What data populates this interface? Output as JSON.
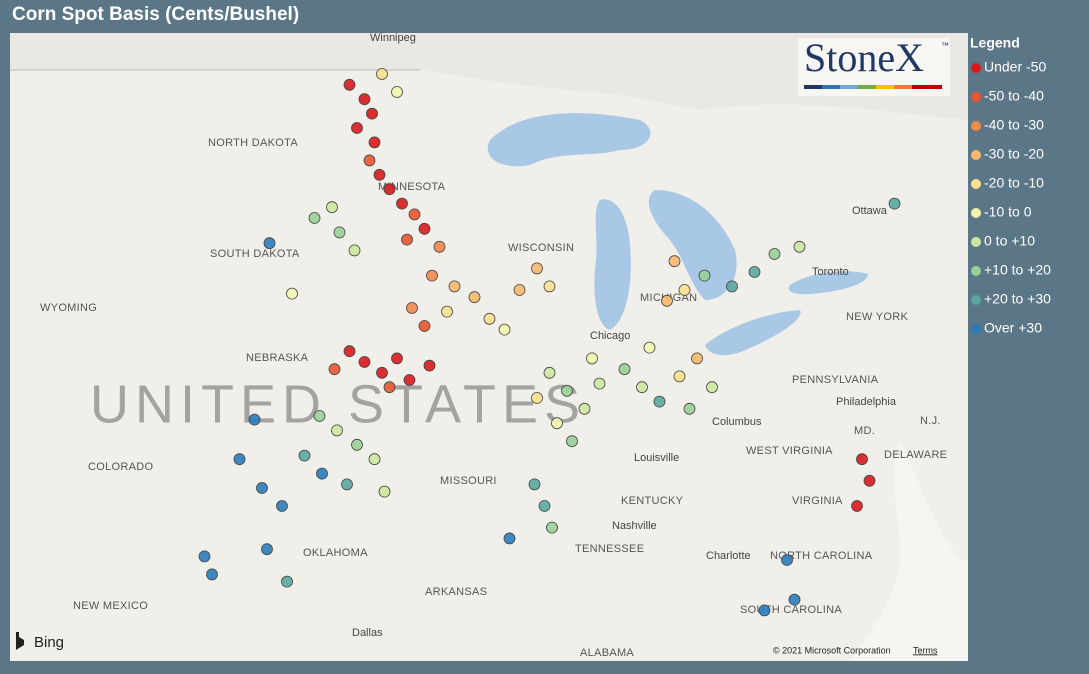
{
  "chart_data": {
    "type": "map",
    "title": "Corn Spot Basis (Cents/Bushel)",
    "legend_title": "Legend",
    "logo": "StoneX",
    "logo_mark": "™",
    "provider": "Bing",
    "copyright": "© 2021 Microsoft Corporation",
    "terms": "Terms",
    "classes": [
      {
        "name": "Under -50",
        "color": "#d7191c"
      },
      {
        "name": "-50 to -40",
        "color": "#e8552f"
      },
      {
        "name": "-40 to -30",
        "color": "#f08a4b"
      },
      {
        "name": "-30 to -20",
        "color": "#f6b86f"
      },
      {
        "name": "-20 to -10",
        "color": "#fbe08f"
      },
      {
        "name": "-10 to 0",
        "color": "#f4f6ad"
      },
      {
        "name": "0 to +10",
        "color": "#cce8a0"
      },
      {
        "name": "+10 to +20",
        "color": "#98d096"
      },
      {
        "name": "+20 to +30",
        "color": "#5aa6a0"
      },
      {
        "name": "Over +30",
        "color": "#2b7bba"
      }
    ],
    "map_labels": [
      "Winnipeg",
      "NORTH DAKOTA",
      "MINNESOTA",
      "SOUTH DAKOTA",
      "WYOMING",
      "NEBRASKA",
      "UNITED STATES",
      "COLORADO",
      "MISSOURI",
      "OKLAHOMA",
      "NEW MEXICO",
      "ARKANSAS",
      "Dallas",
      "ALABAMA",
      "TENNESSEE",
      "Nashville",
      "KENTUCKY",
      "Louisville",
      "WEST VIRGINIA",
      "VIRGINIA",
      "NORTH CAROLINA",
      "SOUTH CAROLINA",
      "Charlotte",
      "PENNSYLVANIA",
      "Philadelphia",
      "NEW YORK",
      "Ottawa",
      "Toronto",
      "Chicago",
      "MICHIGAN",
      "WISCONSIN",
      "Columbus",
      "MD.",
      "DELAWARE",
      "N.J."
    ],
    "points": [
      [
        -97.8,
        48.6,
        0
      ],
      [
        -97.2,
        48.2,
        0
      ],
      [
        -96.9,
        47.8,
        0
      ],
      [
        -97.5,
        47.4,
        0
      ],
      [
        -96.8,
        47.0,
        0
      ],
      [
        -97.0,
        46.5,
        1
      ],
      [
        -96.6,
        46.1,
        0
      ],
      [
        -96.2,
        45.7,
        0
      ],
      [
        -95.7,
        45.3,
        0
      ],
      [
        -95.2,
        45.0,
        1
      ],
      [
        -94.8,
        44.6,
        0
      ],
      [
        -95.5,
        44.3,
        1
      ],
      [
        -94.2,
        44.1,
        2
      ],
      [
        -96.5,
        48.9,
        4
      ],
      [
        -95.9,
        48.4,
        5
      ],
      [
        -98.5,
        45.2,
        6
      ],
      [
        -98.2,
        44.5,
        7
      ],
      [
        -97.6,
        44.0,
        6
      ],
      [
        -99.2,
        44.9,
        7
      ],
      [
        -101.0,
        44.2,
        9
      ],
      [
        -100.1,
        42.8,
        5
      ],
      [
        -94.5,
        43.3,
        2
      ],
      [
        -93.6,
        43.0,
        3
      ],
      [
        -92.8,
        42.7,
        3
      ],
      [
        -93.9,
        42.3,
        4
      ],
      [
        -92.2,
        42.1,
        4
      ],
      [
        -91.6,
        41.8,
        5
      ],
      [
        -94.8,
        41.9,
        1
      ],
      [
        -95.3,
        42.4,
        2
      ],
      [
        -91.0,
        42.9,
        3
      ],
      [
        -90.3,
        43.5,
        3
      ],
      [
        -89.8,
        43.0,
        4
      ],
      [
        -97.8,
        41.2,
        0
      ],
      [
        -97.2,
        40.9,
        0
      ],
      [
        -96.5,
        40.6,
        0
      ],
      [
        -95.9,
        41.0,
        0
      ],
      [
        -96.2,
        40.2,
        1
      ],
      [
        -95.4,
        40.4,
        0
      ],
      [
        -98.4,
        40.7,
        1
      ],
      [
        -94.6,
        40.8,
        0
      ],
      [
        -99.0,
        39.4,
        7
      ],
      [
        -98.3,
        39.0,
        6
      ],
      [
        -97.5,
        38.6,
        7
      ],
      [
        -96.8,
        38.2,
        6
      ],
      [
        -99.6,
        38.3,
        8
      ],
      [
        -98.9,
        37.8,
        9
      ],
      [
        -97.9,
        37.5,
        8
      ],
      [
        -96.4,
        37.3,
        6
      ],
      [
        -101.6,
        39.3,
        9
      ],
      [
        -102.2,
        38.2,
        9
      ],
      [
        -101.3,
        37.4,
        9
      ],
      [
        -100.5,
        36.9,
        9
      ],
      [
        -101.1,
        35.7,
        9
      ],
      [
        -100.3,
        34.8,
        8
      ],
      [
        -89.8,
        40.6,
        6
      ],
      [
        -89.1,
        40.1,
        7
      ],
      [
        -88.4,
        39.6,
        6
      ],
      [
        -89.5,
        39.2,
        5
      ],
      [
        -88.9,
        38.7,
        7
      ],
      [
        -87.8,
        40.3,
        6
      ],
      [
        -90.3,
        39.9,
        4
      ],
      [
        -88.1,
        41.0,
        5
      ],
      [
        -86.8,
        40.7,
        7
      ],
      [
        -86.1,
        40.2,
        6
      ],
      [
        -85.4,
        39.8,
        8
      ],
      [
        -84.6,
        40.5,
        4
      ],
      [
        -83.9,
        41.0,
        3
      ],
      [
        -85.8,
        41.3,
        5
      ],
      [
        -84.2,
        39.6,
        7
      ],
      [
        -83.3,
        40.2,
        6
      ],
      [
        -85.1,
        42.6,
        3
      ],
      [
        -84.4,
        42.9,
        4
      ],
      [
        -83.6,
        43.3,
        7
      ],
      [
        -84.8,
        43.7,
        3
      ],
      [
        -82.5,
        43.0,
        8
      ],
      [
        -81.6,
        43.4,
        8
      ],
      [
        -80.8,
        43.9,
        7
      ],
      [
        -79.8,
        44.1,
        6
      ],
      [
        -76.0,
        45.3,
        8
      ],
      [
        -90.4,
        37.5,
        8
      ],
      [
        -90.0,
        36.9,
        8
      ],
      [
        -89.7,
        36.3,
        7
      ],
      [
        -91.4,
        36.0,
        9
      ],
      [
        -77.3,
        38.2,
        0
      ],
      [
        -77.0,
        37.6,
        0
      ],
      [
        -77.5,
        36.9,
        0
      ],
      [
        -80.3,
        35.4,
        9
      ],
      [
        -80.0,
        34.3,
        9
      ],
      [
        -81.2,
        34.0,
        9
      ],
      [
        -103.6,
        35.5,
        9
      ],
      [
        -103.3,
        35.0,
        9
      ]
    ]
  }
}
